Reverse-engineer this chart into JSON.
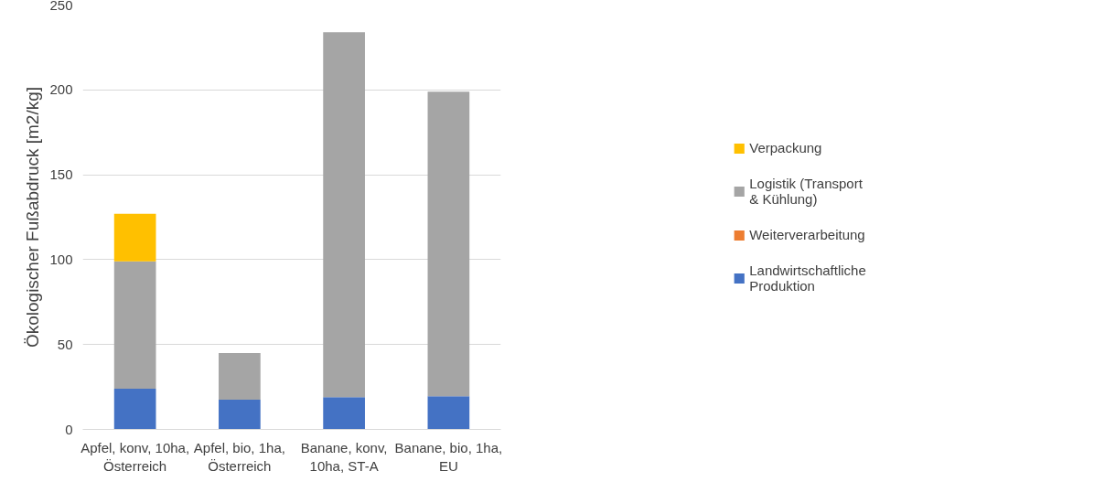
{
  "chart_data": {
    "type": "bar",
    "stacked": true,
    "ylabel": "Ökologischer Fußabdruck [m2/kg]",
    "categories": [
      "Apfel, konv, 10ha, Österreich",
      "Apfel, bio, 1ha, Österreich",
      "Banane, konv, 10ha, ST-A",
      "Banane, bio, 1ha, EU"
    ],
    "series": [
      {
        "name": "Landwirtschaftliche Produktion",
        "color": "#4472c4",
        "values": [
          24,
          17.5,
          19,
          19.5
        ]
      },
      {
        "name": "Weiterverarbeitung",
        "color": "#ed7d31",
        "values": [
          0,
          0,
          0,
          0
        ]
      },
      {
        "name": "Logistik (Transport & Kühlung)",
        "color": "#a5a5a5",
        "values": [
          75,
          27.5,
          215,
          179.5
        ]
      },
      {
        "name": "Verpackung",
        "color": "#ffc000",
        "values": [
          28,
          0,
          0,
          0
        ]
      }
    ],
    "ylim": [
      0,
      250
    ],
    "yticks": [
      0,
      50,
      100,
      150,
      200,
      250
    ],
    "grid": "y",
    "legend": "right"
  }
}
